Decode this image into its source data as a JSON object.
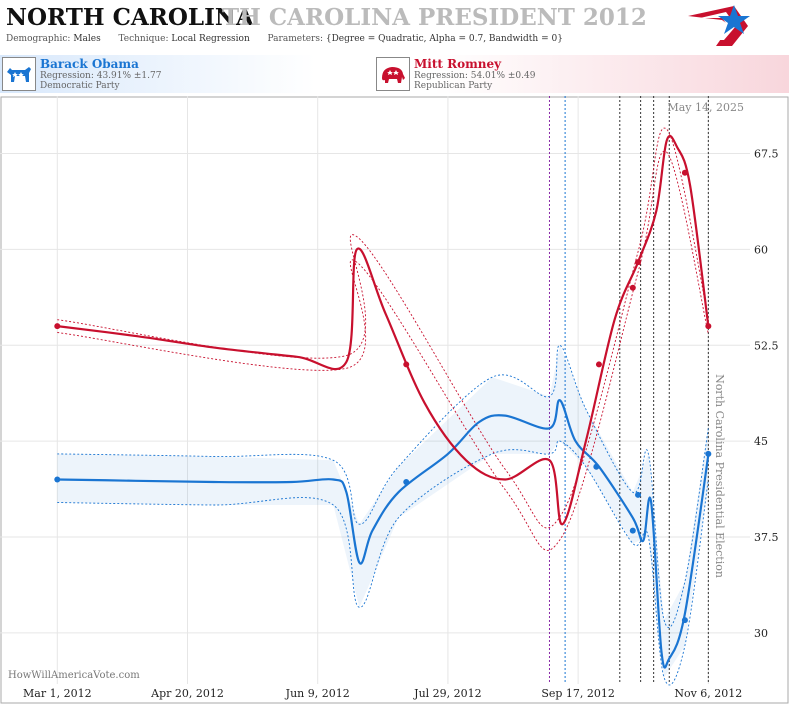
{
  "header": {
    "title_state": "NORTH CAROLINA",
    "title_race": "TH CAROLINA PRESIDENT 2012",
    "params": [
      {
        "key": "Demographic:",
        "value": "Males"
      },
      {
        "key": "Technique:",
        "value": "Local Regression"
      },
      {
        "key": "Parameters:",
        "value": "{Degree = Quadratic, Alpha = 0.7, Bandwidth = 0}"
      }
    ]
  },
  "candidates": [
    {
      "name": "Barack Obama",
      "regression": "Regression: 43.91% ±1.77",
      "party": "Democratic Party",
      "color": "#1a75d2",
      "icon": "donkey-icon"
    },
    {
      "name": "Mitt Romney",
      "regression": "Regression: 54.01% ±0.49",
      "party": "Republican Party",
      "color": "#c8102e",
      "icon": "elephant-icon"
    }
  ],
  "watermark": "HowWillAmericaVote.com",
  "date_label": "May 14, 2025",
  "election_label": "North Carolina Presidential Election",
  "chart_data": {
    "type": "line",
    "x_tick_labels": [
      "Mar 1, 2012",
      "Apr 20, 2012",
      "Jun 9, 2012",
      "Jul 29, 2012",
      "Sep 17, 2012",
      "Nov 6, 2012"
    ],
    "y_ticks": [
      30,
      37.5,
      45,
      52.5,
      60,
      67.5
    ],
    "xlim": [
      "2012-02-08",
      "2012-11-22"
    ],
    "ylim": [
      26,
      72
    ],
    "grid": true,
    "event_dates": [
      "2012-09-06",
      "2012-09-12",
      "2012-10-03",
      "2012-10-11",
      "2012-10-16",
      "2012-10-22",
      "2012-11-06"
    ],
    "series": [
      {
        "name": "Barack Obama",
        "color": "#1a75d2",
        "line": [
          [
            "2012-03-01",
            42
          ],
          [
            "2012-03-31",
            41.9
          ],
          [
            "2012-04-30",
            41.8
          ],
          [
            "2012-05-30",
            41.8
          ],
          [
            "2012-06-15",
            42
          ],
          [
            "2012-06-20",
            41
          ],
          [
            "2012-06-25",
            35.5
          ],
          [
            "2012-06-30",
            38
          ],
          [
            "2012-07-10",
            41
          ],
          [
            "2012-07-29",
            44
          ],
          [
            "2012-08-10",
            46.5
          ],
          [
            "2012-08-20",
            47
          ],
          [
            "2012-09-06",
            46
          ],
          [
            "2012-09-10",
            48.2
          ],
          [
            "2012-09-16",
            45
          ],
          [
            "2012-09-25",
            43
          ],
          [
            "2012-10-08",
            39
          ],
          [
            "2012-10-12",
            37.2
          ],
          [
            "2012-10-15",
            40.3
          ],
          [
            "2012-10-19",
            28.5
          ],
          [
            "2012-10-22",
            28
          ],
          [
            "2012-10-28",
            31.5
          ],
          [
            "2012-11-06",
            43.9
          ]
        ],
        "upper": [
          [
            "2012-03-01",
            44
          ],
          [
            "2012-04-30",
            43.8
          ],
          [
            "2012-06-15",
            43.5
          ],
          [
            "2012-06-25",
            38.5
          ],
          [
            "2012-07-10",
            43
          ],
          [
            "2012-08-15",
            50
          ],
          [
            "2012-09-06",
            48.5
          ],
          [
            "2012-09-10",
            52.5
          ],
          [
            "2012-09-20",
            47.5
          ],
          [
            "2012-10-08",
            41
          ],
          [
            "2012-10-14",
            44
          ],
          [
            "2012-10-20",
            31
          ],
          [
            "2012-10-28",
            34
          ],
          [
            "2012-11-06",
            46
          ]
        ],
        "lower": [
          [
            "2012-03-01",
            40.2
          ],
          [
            "2012-04-30",
            40
          ],
          [
            "2012-06-15",
            40
          ],
          [
            "2012-06-25",
            32
          ],
          [
            "2012-07-10",
            39
          ],
          [
            "2012-08-15",
            44
          ],
          [
            "2012-09-06",
            44
          ],
          [
            "2012-09-10",
            45
          ],
          [
            "2012-09-20",
            43
          ],
          [
            "2012-10-08",
            37
          ],
          [
            "2012-10-14",
            37.5
          ],
          [
            "2012-10-20",
            26.5
          ],
          [
            "2012-10-28",
            29
          ],
          [
            "2012-11-06",
            42
          ]
        ],
        "points": [
          [
            "2012-03-01",
            42
          ],
          [
            "2012-07-13",
            41.8
          ],
          [
            "2012-09-24",
            43
          ],
          [
            "2012-10-08",
            38
          ],
          [
            "2012-10-10",
            40.8
          ],
          [
            "2012-10-28",
            31
          ],
          [
            "2012-11-06",
            44
          ]
        ]
      },
      {
        "name": "Mitt Romney",
        "color": "#c8102e",
        "line": [
          [
            "2012-03-01",
            54
          ],
          [
            "2012-04-01",
            53.2
          ],
          [
            "2012-05-01",
            52.3
          ],
          [
            "2012-06-01",
            51.6
          ],
          [
            "2012-06-20",
            51.2
          ],
          [
            "2012-06-24",
            60
          ],
          [
            "2012-07-05",
            55
          ],
          [
            "2012-07-20",
            48
          ],
          [
            "2012-08-05",
            43.5
          ],
          [
            "2012-08-20",
            42
          ],
          [
            "2012-09-06",
            43.5
          ],
          [
            "2012-09-11",
            38.5
          ],
          [
            "2012-09-20",
            45
          ],
          [
            "2012-10-01",
            54.5
          ],
          [
            "2012-10-10",
            59
          ],
          [
            "2012-10-17",
            63
          ],
          [
            "2012-10-21",
            68.5
          ],
          [
            "2012-10-25",
            68
          ],
          [
            "2012-10-30",
            65
          ],
          [
            "2012-11-06",
            54
          ]
        ],
        "upper": [
          [
            "2012-03-01",
            54.5
          ],
          [
            "2012-06-20",
            51.7
          ],
          [
            "2012-06-24",
            61
          ],
          [
            "2012-08-20",
            42.8
          ],
          [
            "2012-09-11",
            39.4
          ],
          [
            "2012-10-10",
            59.8
          ],
          [
            "2012-10-21",
            69.4
          ],
          [
            "2012-11-06",
            54.6
          ]
        ],
        "lower": [
          [
            "2012-03-01",
            53.5
          ],
          [
            "2012-06-20",
            50.7
          ],
          [
            "2012-06-24",
            59
          ],
          [
            "2012-08-20",
            41.2
          ],
          [
            "2012-09-11",
            37.6
          ],
          [
            "2012-10-10",
            58.2
          ],
          [
            "2012-10-21",
            67.6
          ],
          [
            "2012-11-06",
            53.4
          ]
        ],
        "points": [
          [
            "2012-03-01",
            54
          ],
          [
            "2012-07-13",
            51
          ],
          [
            "2012-09-25",
            51
          ],
          [
            "2012-10-08",
            57
          ],
          [
            "2012-10-10",
            59
          ],
          [
            "2012-10-28",
            66
          ],
          [
            "2012-11-06",
            54
          ]
        ]
      }
    ]
  }
}
